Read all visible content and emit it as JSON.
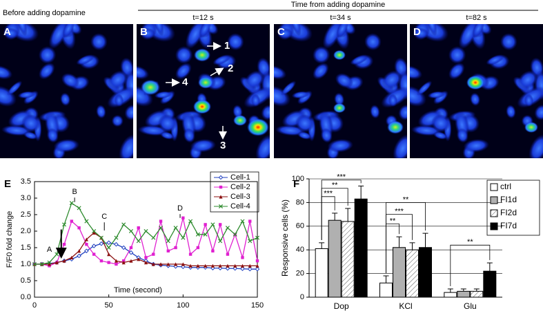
{
  "figure": {
    "header_left": "Before adding dopamine",
    "header_right": "Time from adding dopamine",
    "panels": [
      {
        "letter": "A"
      },
      {
        "letter": "B",
        "time": "t=12 s"
      },
      {
        "letter": "C",
        "time": "t=34 s"
      },
      {
        "letter": "D",
        "time": "t=82 s"
      }
    ],
    "cell_labels": [
      "1",
      "2",
      "3",
      "4"
    ]
  },
  "chart_data": [
    {
      "type": "line",
      "panel_label": "E",
      "xlabel": "Time (second)",
      "ylabel": "F/F0 fold change",
      "x": [
        0,
        5,
        10,
        15,
        20,
        25,
        30,
        35,
        40,
        45,
        50,
        55,
        60,
        65,
        70,
        75,
        80,
        85,
        90,
        95,
        100,
        105,
        110,
        115,
        120,
        125,
        130,
        135,
        140,
        145,
        150
      ],
      "xlim": [
        0,
        150
      ],
      "xticks": [
        0,
        50,
        100,
        150
      ],
      "ylim": [
        0,
        3.5
      ],
      "yticks": [
        {
          "value": 0,
          "label": "0.0"
        },
        {
          "value": 0.5,
          "label": "0.5"
        },
        {
          "value": 1,
          "label": "1.0"
        },
        {
          "value": 1.5,
          "label": "1.5"
        },
        {
          "value": 2,
          "label": "2.0"
        },
        {
          "value": 2.5,
          "label": "2.5"
        },
        {
          "value": 3,
          "label": "3.0"
        },
        {
          "value": 3.5,
          "label": "3.5"
        }
      ],
      "legend": "upper right",
      "annotations": [
        "A",
        "B",
        "C",
        "D"
      ],
      "series": [
        {
          "name": "Cell-1",
          "color": "#1f3fbf",
          "marker": "diamond",
          "values": [
            1.0,
            1.0,
            1.02,
            1.05,
            1.1,
            1.15,
            1.25,
            1.4,
            1.55,
            1.62,
            1.65,
            1.6,
            1.5,
            1.35,
            1.2,
            1.1,
            1.0,
            0.97,
            0.95,
            0.93,
            0.92,
            0.9,
            0.9,
            0.9,
            0.88,
            0.88,
            0.87,
            0.87,
            0.86,
            0.85,
            0.85
          ]
        },
        {
          "name": "Cell-2",
          "color": "#e020d0",
          "marker": "square",
          "values": [
            1.0,
            1.0,
            0.95,
            1.05,
            1.6,
            2.3,
            2.1,
            1.6,
            1.3,
            1.1,
            1.05,
            1.0,
            1.1,
            1.5,
            2.1,
            1.2,
            1.3,
            2.3,
            1.4,
            1.5,
            2.4,
            1.3,
            1.5,
            2.2,
            1.4,
            2.2,
            1.3,
            1.9,
            1.2,
            2.3,
            1.1
          ]
        },
        {
          "name": "Cell-3",
          "color": "#8b1010",
          "marker": "triangle",
          "values": [
            1.0,
            1.0,
            1.0,
            1.05,
            1.1,
            1.2,
            1.4,
            1.75,
            1.95,
            1.8,
            1.3,
            1.1,
            1.05,
            1.1,
            1.15,
            1.05,
            1.0,
            1.0,
            1.0,
            1.0,
            1.0,
            0.95,
            0.95,
            0.95,
            0.95,
            0.95,
            0.95,
            0.95,
            0.95,
            0.95,
            0.95
          ]
        },
        {
          "name": "Cell-4",
          "color": "#2e8b2e",
          "marker": "x",
          "values": [
            1.0,
            1.0,
            1.05,
            1.3,
            2.2,
            2.85,
            2.7,
            2.3,
            2.0,
            1.8,
            1.5,
            1.8,
            2.2,
            2.0,
            1.7,
            2.0,
            1.8,
            2.1,
            1.7,
            2.1,
            1.8,
            2.3,
            1.9,
            1.9,
            2.2,
            1.7,
            2.1,
            1.9,
            2.3,
            1.7,
            1.8
          ]
        }
      ]
    },
    {
      "type": "bar",
      "panel_label": "F",
      "ylabel": "Responsive cells (%)",
      "categories": [
        "Dop",
        "KCl",
        "Glu"
      ],
      "ylim": [
        0,
        100
      ],
      "yticks": [
        0,
        20,
        40,
        60,
        80,
        100
      ],
      "grid": true,
      "legend": "upper right",
      "significance": [
        "***",
        "**",
        "***",
        "**",
        "***",
        "**",
        "**"
      ],
      "series": [
        {
          "name": "ctrl",
          "color": "#ffffff",
          "values": [
            41,
            12,
            4
          ],
          "errors": [
            5,
            6,
            3
          ]
        },
        {
          "name": "FI1d",
          "color": "#b0b0b0",
          "values": [
            65,
            42,
            5
          ],
          "errors": [
            6,
            9,
            2
          ]
        },
        {
          "name": "FI2d",
          "color": "#ffffff",
          "hatch": true,
          "values": [
            64,
            40,
            5
          ],
          "errors": [
            11,
            6,
            2
          ]
        },
        {
          "name": "FI7d",
          "color": "#000000",
          "values": [
            83,
            42,
            22
          ],
          "errors": [
            11,
            12,
            7
          ]
        }
      ]
    }
  ]
}
